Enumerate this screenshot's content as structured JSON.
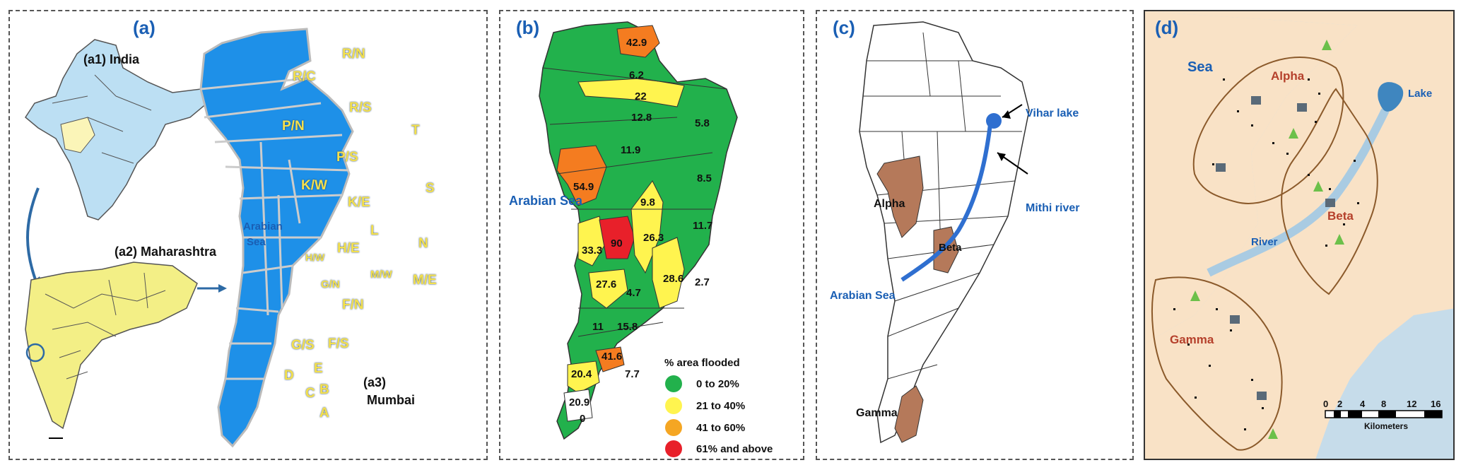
{
  "panel_a": {
    "label": "(a)",
    "india_label": "(a1) India",
    "maharashtra_label": "(a2) Maharashtra",
    "mumbai_label_1": "(a3)",
    "mumbai_label_2": "Mumbai",
    "sea_label_1": "Arabian",
    "sea_label_2": "Sea",
    "wards": [
      "R/N",
      "R/C",
      "R/S",
      "P/N",
      "T",
      "P/S",
      "K/W",
      "K/E",
      "S",
      "N",
      "H/W",
      "H/E",
      "L",
      "G/N",
      "M/W",
      "M/E",
      "F/N",
      "G/S",
      "F/S",
      "D",
      "E",
      "C",
      "B",
      "A"
    ]
  },
  "panel_b": {
    "label": "(b)",
    "sea_label": "Arabian Sea",
    "values": [
      "42.9",
      "6.2",
      "22",
      "12.8",
      "5.8",
      "11.9",
      "8.5",
      "54.9",
      "9.8",
      "11.7",
      "33.3",
      "90",
      "26.3",
      "28.6",
      "27.6",
      "4.7",
      "2.7",
      "11",
      "15.8",
      "41.6",
      "20.4",
      "7.7",
      "20.9",
      "0"
    ],
    "legend_title": "% area flooded",
    "legend": [
      {
        "label": "0 to 20%",
        "color": "#22b14c"
      },
      {
        "label": "21 to 40%",
        "color": "#fff44f"
      },
      {
        "label": "41 to 60%",
        "color": "#f5a623"
      },
      {
        "label": "61% and  above",
        "color": "#e8202a"
      }
    ]
  },
  "panel_c": {
    "label": "(c)",
    "lake_label": "Vihar lake",
    "river_label": "Mithi river",
    "alpha": "Alpha",
    "beta": "Beta",
    "gamma": "Gamma",
    "sea_label": "Arabian Sea"
  },
  "panel_d": {
    "label": "(d)",
    "sea_label": "Sea",
    "lake_label": "Lake",
    "river_label": "River",
    "alpha": "Alpha",
    "beta": "Beta",
    "gamma": "Gamma",
    "scale_ticks": [
      "0",
      "2",
      "4",
      "8",
      "12",
      "16"
    ],
    "scale_unit": "Kilometers"
  }
}
